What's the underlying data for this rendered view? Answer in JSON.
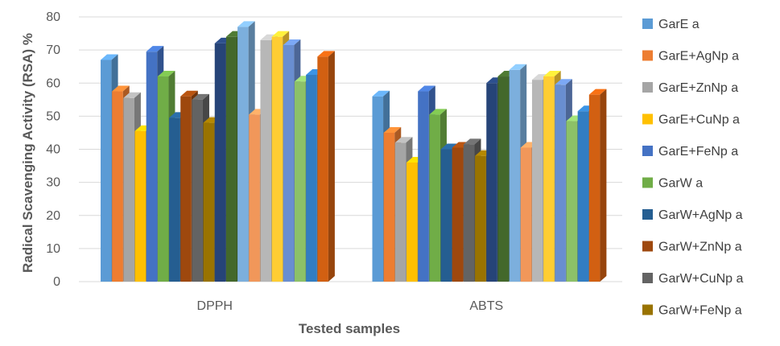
{
  "chart_data": {
    "type": "bar",
    "title": "",
    "xlabel": "Tested samples",
    "ylabel": "Radical Scavenging Activity (RSA) %",
    "ylim": [
      0,
      80
    ],
    "yticks": [
      0,
      10,
      20,
      30,
      40,
      50,
      60,
      70,
      80
    ],
    "grid": true,
    "legend_position": "right",
    "categories": [
      "DPPH",
      "ABTS"
    ],
    "visible_legend_entries": [
      "GarE a",
      "GarE+AgNp a",
      "GarE+ZnNp a",
      "GarE+CuNp a",
      "GarE+FeNp a",
      "GarW a",
      "GarW+AgNp a",
      "GarW+ZnNp a",
      "GarW+CuNp a",
      "GarW+FeNp a"
    ],
    "series": [
      {
        "name": "GarE a",
        "color": "#5B9BD5",
        "values": [
          67,
          56
        ]
      },
      {
        "name": "GarE+AgNp a",
        "color": "#ED7D31",
        "values": [
          57.5,
          45
        ]
      },
      {
        "name": "GarE+ZnNp a",
        "color": "#A5A5A5",
        "values": [
          55.5,
          42
        ]
      },
      {
        "name": "GarE+CuNp a",
        "color": "#FFC000",
        "values": [
          45.5,
          36
        ]
      },
      {
        "name": "GarE+FeNp a",
        "color": "#4472C4",
        "values": [
          69.5,
          57.5
        ]
      },
      {
        "name": "GarW a",
        "color": "#70AD47",
        "values": [
          62,
          50.5
        ]
      },
      {
        "name": "GarW+AgNp a",
        "color": "#255E91",
        "values": [
          49.5,
          40
        ]
      },
      {
        "name": "GarW+ZnNp a",
        "color": "#9E480E",
        "values": [
          56,
          40.5
        ]
      },
      {
        "name": "GarW+CuNp a",
        "color": "#636363",
        "values": [
          55,
          41.5
        ]
      },
      {
        "name": "GarW+FeNp a",
        "color": "#997300",
        "values": [
          48,
          38
        ]
      },
      {
        "color": "#264478",
        "values": [
          72,
          60
        ]
      },
      {
        "color": "#43682B",
        "values": [
          74,
          62
        ]
      },
      {
        "color": "#7CAFDD",
        "values": [
          77,
          64
        ]
      },
      {
        "color": "#F1975A",
        "values": [
          50.5,
          40.5
        ]
      },
      {
        "color": "#B7B7B7",
        "values": [
          73,
          61
        ]
      },
      {
        "color": "#FFCD33",
        "values": [
          74,
          62
        ]
      },
      {
        "color": "#698ED0",
        "values": [
          71.5,
          59.5
        ]
      },
      {
        "color": "#8CC168",
        "values": [
          60.5,
          48.5
        ]
      },
      {
        "color": "#327DC2",
        "values": [
          62.5,
          51.5
        ]
      },
      {
        "color": "#D26012",
        "values": [
          68,
          56.5
        ]
      }
    ]
  }
}
